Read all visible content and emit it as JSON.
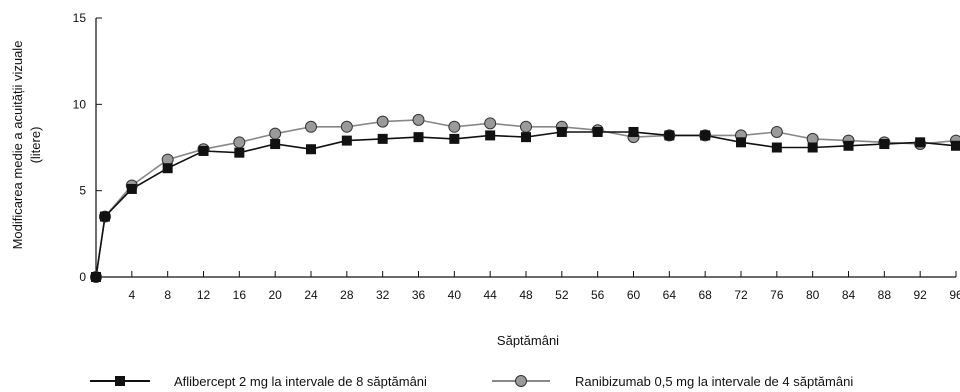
{
  "chart_data": {
    "type": "line",
    "xlabel": "Săptămâni",
    "ylabel_lines": [
      "Modificarea medie a acuității vizuale",
      "(litere)"
    ],
    "x": [
      0,
      1,
      4,
      8,
      12,
      16,
      20,
      24,
      28,
      32,
      36,
      40,
      44,
      48,
      52,
      56,
      60,
      64,
      68,
      72,
      76,
      80,
      84,
      88,
      92,
      96
    ],
    "xticks": [
      4,
      8,
      12,
      16,
      20,
      24,
      28,
      32,
      36,
      40,
      44,
      48,
      52,
      56,
      60,
      64,
      68,
      72,
      76,
      80,
      84,
      88,
      92,
      96
    ],
    "yticks": [
      0,
      5,
      10,
      15
    ],
    "xlim": [
      0,
      96
    ],
    "ylim": [
      0,
      15
    ],
    "series": [
      {
        "name": "Aflibercept 2 mg la intervale de 8 săptămâni",
        "marker": "square",
        "color": "#111111",
        "values": [
          0,
          3.5,
          5.1,
          6.3,
          7.3,
          7.2,
          7.7,
          7.4,
          7.9,
          8.0,
          8.1,
          8.0,
          8.2,
          8.1,
          8.4,
          8.4,
          8.4,
          8.2,
          8.2,
          7.8,
          7.5,
          7.5,
          7.6,
          7.7,
          7.8,
          7.6
        ]
      },
      {
        "name": "Ranibizumab 0,5 mg la intervale de 4 săptămâni",
        "marker": "circle",
        "color": "#888888",
        "values": [
          0,
          3.5,
          5.3,
          6.8,
          7.4,
          7.8,
          8.3,
          8.7,
          8.7,
          9.0,
          9.1,
          8.7,
          8.9,
          8.7,
          8.7,
          8.5,
          8.1,
          8.2,
          8.2,
          8.2,
          8.4,
          8.0,
          7.9,
          7.8,
          7.7,
          7.9
        ]
      }
    ],
    "grid": false,
    "legend_position": "bottom"
  }
}
